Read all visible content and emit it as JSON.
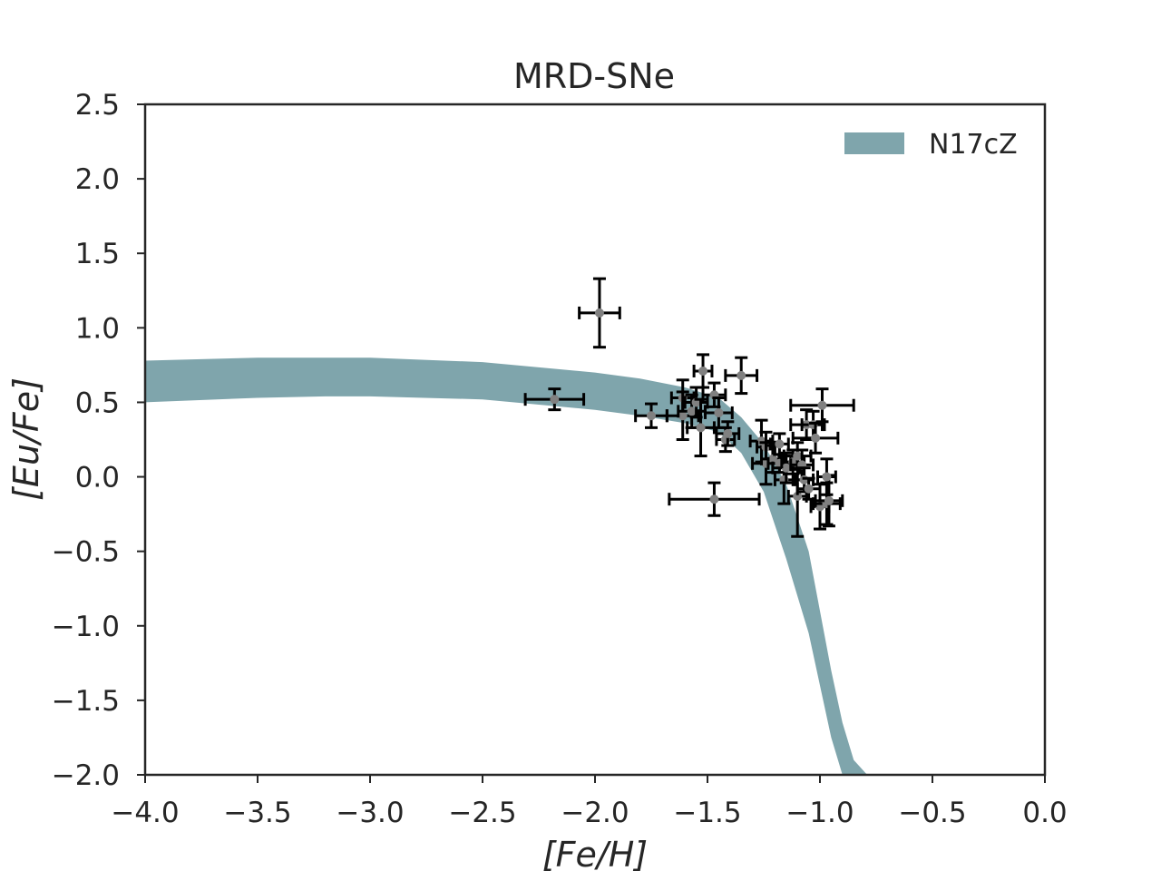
{
  "chart_data": {
    "type": "scatter",
    "title": "MRD-SNe",
    "xlabel": "[Fe/H]",
    "ylabel": "[Eu/Fe]",
    "xlim": [
      -4.0,
      0.0
    ],
    "ylim": [
      -2.0,
      2.5
    ],
    "xticks": [
      -4.0,
      -3.5,
      -3.0,
      -2.5,
      -2.0,
      -1.5,
      -1.0,
      -0.5,
      0.0
    ],
    "yticks": [
      -2.0,
      -1.5,
      -1.0,
      -0.5,
      0.0,
      0.5,
      1.0,
      1.5,
      2.0,
      2.5
    ],
    "xtick_labels": [
      "−4.0",
      "−3.5",
      "−3.0",
      "−2.5",
      "−2.0",
      "−1.5",
      "−1.0",
      "−0.5",
      "0.0"
    ],
    "ytick_labels": [
      "−2.0",
      "−1.5",
      "−1.0",
      "−0.5",
      "0.0",
      "0.5",
      "1.0",
      "1.5",
      "2.0",
      "2.5"
    ],
    "grid": false,
    "legend": {
      "location": "top-right",
      "entries": [
        {
          "label": "N17cZ",
          "color": "#7fa5ac"
        }
      ]
    },
    "band": {
      "name": "N17cZ",
      "color": "#7fa5ac",
      "x": [
        -4.0,
        -3.5,
        -3.2,
        -3.0,
        -2.5,
        -2.0,
        -1.8,
        -1.6,
        -1.45,
        -1.35,
        -1.25,
        -1.15,
        -1.05,
        -1.0,
        -0.95,
        -0.9,
        -0.85,
        -0.79
      ],
      "upper": [
        0.78,
        0.8,
        0.8,
        0.8,
        0.77,
        0.7,
        0.66,
        0.6,
        0.53,
        0.4,
        0.22,
        -0.05,
        -0.5,
        -0.9,
        -1.3,
        -1.65,
        -1.9,
        -2.0
      ],
      "lower": [
        0.5,
        0.53,
        0.54,
        0.54,
        0.52,
        0.45,
        0.41,
        0.36,
        0.3,
        0.16,
        -0.1,
        -0.55,
        -1.05,
        -1.4,
        -1.75,
        -2.0,
        -2.0,
        -2.0
      ]
    },
    "points": [
      {
        "x": -1.98,
        "y": 1.1,
        "xerr": 0.09,
        "yerr": 0.23
      },
      {
        "x": -2.18,
        "y": 0.52,
        "xerr": 0.13,
        "yerr": 0.07
      },
      {
        "x": -1.75,
        "y": 0.41,
        "xerr": 0.07,
        "yerr": 0.08
      },
      {
        "x": -1.61,
        "y": 0.53,
        "xerr": 0.05,
        "yerr": 0.12
      },
      {
        "x": -1.61,
        "y": 0.41,
        "xerr": 0.07,
        "yerr": 0.16
      },
      {
        "x": -1.57,
        "y": 0.44,
        "xerr": 0.06,
        "yerr": 0.11
      },
      {
        "x": -1.55,
        "y": 0.5,
        "xerr": 0.05,
        "yerr": 0.1
      },
      {
        "x": -1.52,
        "y": 0.71,
        "xerr": 0.04,
        "yerr": 0.11
      },
      {
        "x": -1.53,
        "y": 0.33,
        "xerr": 0.06,
        "yerr": 0.19
      },
      {
        "x": -1.47,
        "y": 0.55,
        "xerr": 0.05,
        "yerr": 0.08
      },
      {
        "x": -1.45,
        "y": 0.43,
        "xerr": 0.06,
        "yerr": 0.1
      },
      {
        "x": -1.42,
        "y": 0.25,
        "xerr": 0.04,
        "yerr": 0.08
      },
      {
        "x": -1.41,
        "y": 0.29,
        "xerr": 0.05,
        "yerr": 0.08
      },
      {
        "x": -1.35,
        "y": 0.68,
        "xerr": 0.07,
        "yerr": 0.12
      },
      {
        "x": -1.47,
        "y": -0.15,
        "xerr": 0.2,
        "yerr": 0.11
      },
      {
        "x": -1.26,
        "y": 0.24,
        "xerr": 0.05,
        "yerr": 0.14
      },
      {
        "x": -1.24,
        "y": 0.2,
        "xerr": 0.04,
        "yerr": 0.1
      },
      {
        "x": -1.24,
        "y": 0.09,
        "xerr": 0.06,
        "yerr": 0.14
      },
      {
        "x": -1.21,
        "y": 0.12,
        "xerr": 0.05,
        "yerr": 0.09
      },
      {
        "x": -1.18,
        "y": 0.09,
        "xerr": 0.05,
        "yerr": 0.06
      },
      {
        "x": -1.18,
        "y": 0.22,
        "xerr": 0.04,
        "yerr": 0.07
      },
      {
        "x": -1.16,
        "y": -0.02,
        "xerr": 0.04,
        "yerr": 0.16
      },
      {
        "x": -1.15,
        "y": 0.06,
        "xerr": 0.06,
        "yerr": 0.1
      },
      {
        "x": -1.12,
        "y": 0.1,
        "xerr": 0.05,
        "yerr": 0.08
      },
      {
        "x": -1.1,
        "y": -0.13,
        "xerr": 0.04,
        "yerr": 0.27
      },
      {
        "x": -1.1,
        "y": 0.14,
        "xerr": 0.06,
        "yerr": 0.09
      },
      {
        "x": -1.08,
        "y": 0.08,
        "xerr": 0.05,
        "yerr": 0.1
      },
      {
        "x": -1.07,
        "y": -0.02,
        "xerr": 0.04,
        "yerr": 0.08
      },
      {
        "x": -1.06,
        "y": 0.35,
        "xerr": 0.07,
        "yerr": 0.1
      },
      {
        "x": -1.05,
        "y": -0.08,
        "xerr": 0.05,
        "yerr": 0.07
      },
      {
        "x": -1.03,
        "y": 0.35,
        "xerr": 0.05,
        "yerr": 0.09
      },
      {
        "x": -1.02,
        "y": 0.26,
        "xerr": 0.1,
        "yerr": 0.1
      },
      {
        "x": -1.0,
        "y": -0.2,
        "xerr": 0.04,
        "yerr": 0.15
      },
      {
        "x": -0.99,
        "y": 0.48,
        "xerr": 0.14,
        "yerr": 0.11
      },
      {
        "x": -0.97,
        "y": -0.18,
        "xerr": 0.06,
        "yerr": 0.14
      },
      {
        "x": -0.96,
        "y": -0.16,
        "xerr": 0.06,
        "yerr": 0.17
      },
      {
        "x": -0.97,
        "y": 0.0,
        "xerr": 0.04,
        "yerr": 0.12
      }
    ]
  }
}
